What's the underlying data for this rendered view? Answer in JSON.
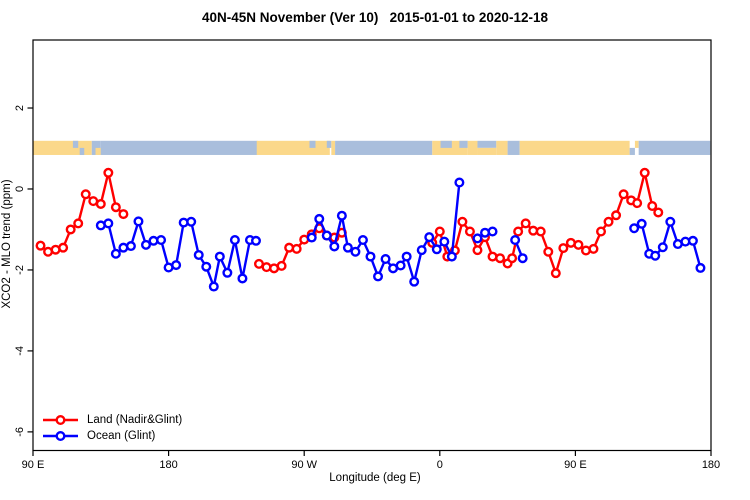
{
  "chart_data": {
    "type": "line",
    "title": "40N-45N November (Ver 10)   2015-01-01 to 2020-12-18",
    "xlabel": "Longitude (deg E)",
    "ylabel": "XCO2 - MLO trend (ppm)",
    "xlim": [
      90,
      540
    ],
    "ylim": [
      -6.46,
      3.68
    ],
    "grid": false,
    "legend_position": "bottom-left",
    "x_ticks": [
      {
        "label": "90 E",
        "lon": 90
      },
      {
        "label": "180",
        "lon": 180
      },
      {
        "label": "90 W",
        "lon": 270
      },
      {
        "label": "0",
        "lon": 360
      },
      {
        "label": "90 E",
        "lon": 450
      },
      {
        "label": "180",
        "lon": 540
      }
    ],
    "y_ticks": [
      {
        "label": "2",
        "value": 2
      },
      {
        "label": "0",
        "value": 0
      },
      {
        "label": "-2",
        "value": -2
      },
      {
        "label": "-4",
        "value": -4
      },
      {
        "label": "-6",
        "value": -6
      }
    ],
    "series": [
      {
        "name": "Land (Nadir&Glint)",
        "color": "#ff0000",
        "marker": "open-circle",
        "segments": [
          [
            [
              95,
              -1.4
            ],
            [
              100,
              -1.55
            ],
            [
              105,
              -1.5
            ],
            [
              110,
              -1.45
            ],
            [
              115,
              -1.0
            ],
            [
              120,
              -0.85
            ],
            [
              125,
              -0.13
            ],
            [
              130,
              -0.3
            ],
            [
              135,
              -0.37
            ],
            [
              140,
              0.4
            ],
            [
              145,
              -0.45
            ],
            [
              150,
              -0.62
            ]
          ],
          [
            [
              240,
              -1.85
            ],
            [
              245,
              -1.93
            ],
            [
              250,
              -1.96
            ],
            [
              255,
              -1.9
            ],
            [
              260,
              -1.45
            ],
            [
              265,
              -1.48
            ],
            [
              270,
              -1.25
            ],
            [
              275,
              -1.12
            ],
            [
              280,
              -0.97
            ],
            [
              285,
              -1.15
            ],
            [
              290,
              -1.2
            ],
            [
              295,
              -1.08
            ]
          ],
          [
            [
              355,
              -1.33
            ],
            [
              360,
              -1.05
            ],
            [
              365,
              -1.67
            ],
            [
              370,
              -1.52
            ],
            [
              375,
              -0.81
            ],
            [
              380,
              -1.05
            ],
            [
              385,
              -1.51
            ],
            [
              390,
              -1.19
            ],
            [
              395,
              -1.67
            ],
            [
              400,
              -1.71
            ],
            [
              405,
              -1.84
            ],
            [
              408,
              -1.71
            ],
            [
              412,
              -1.05
            ],
            [
              417,
              -0.85
            ],
            [
              422,
              -1.03
            ],
            [
              427,
              -1.05
            ],
            [
              432,
              -1.55
            ],
            [
              437,
              -2.08
            ],
            [
              442,
              -1.46
            ],
            [
              447,
              -1.33
            ],
            [
              452,
              -1.38
            ],
            [
              457,
              -1.52
            ],
            [
              462,
              -1.48
            ],
            [
              467,
              -1.05
            ],
            [
              472,
              -0.81
            ],
            [
              477,
              -0.65
            ],
            [
              482,
              -0.13
            ],
            [
              487,
              -0.28
            ],
            [
              491,
              -0.35
            ],
            [
              496,
              0.4
            ],
            [
              501,
              -0.42
            ],
            [
              505,
              -0.58
            ]
          ]
        ]
      },
      {
        "name": "Ocean (Glint)",
        "color": "#0000ff",
        "marker": "open-circle",
        "segments": [
          [
            [
              135,
              -0.9
            ],
            [
              140,
              -0.85
            ],
            [
              145,
              -1.6
            ],
            [
              150,
              -1.45
            ],
            [
              155,
              -1.41
            ],
            [
              160,
              -0.8
            ],
            [
              165,
              -1.38
            ],
            [
              170,
              -1.28
            ],
            [
              175,
              -1.26
            ],
            [
              180,
              -1.94
            ],
            [
              185,
              -1.88
            ],
            [
              190,
              -0.83
            ],
            [
              195,
              -0.81
            ],
            [
              200,
              -1.63
            ],
            [
              205,
              -1.92
            ],
            [
              210,
              -2.41
            ],
            [
              214,
              -1.67
            ],
            [
              219,
              -2.07
            ],
            [
              224,
              -1.26
            ],
            [
              229,
              -2.21
            ],
            [
              234,
              -1.26
            ],
            [
              238,
              -1.28
            ]
          ],
          [
            [
              275,
              -1.2
            ],
            [
              280,
              -0.74
            ],
            [
              285,
              -1.15
            ],
            [
              290,
              -1.42
            ],
            [
              295,
              -0.66
            ],
            [
              299,
              -1.45
            ],
            [
              304,
              -1.55
            ],
            [
              309,
              -1.26
            ],
            [
              314,
              -1.67
            ],
            [
              319,
              -2.16
            ],
            [
              324,
              -1.73
            ],
            [
              329,
              -1.96
            ],
            [
              334,
              -1.89
            ],
            [
              338,
              -1.67
            ],
            [
              343,
              -2.29
            ],
            [
              348,
              -1.51
            ],
            [
              353,
              -1.19
            ],
            [
              358,
              -1.49
            ],
            [
              363,
              -1.3
            ],
            [
              368,
              -1.67
            ],
            [
              373,
              0.16
            ]
          ],
          [
            [
              385,
              -1.22
            ],
            [
              390,
              -1.08
            ],
            [
              395,
              -1.05
            ]
          ],
          [
            [
              410,
              -1.26
            ],
            [
              415,
              -1.71
            ]
          ],
          [
            [
              489,
              -0.97
            ],
            [
              494,
              -0.86
            ],
            [
              499,
              -1.6
            ],
            [
              503,
              -1.65
            ],
            [
              508,
              -1.44
            ],
            [
              513,
              -0.81
            ],
            [
              518,
              -1.36
            ],
            [
              523,
              -1.3
            ],
            [
              528,
              -1.28
            ],
            [
              533,
              -1.95
            ]
          ]
        ]
      }
    ],
    "map_band": {
      "description": "land/ocean strip along 40N-45N",
      "value_range": [
        0.84,
        1.19
      ],
      "land_color": "#fbd88a",
      "ocean_color": "#a9bedc",
      "patches": [
        {
          "type": "land",
          "from": 90,
          "to": 129,
          "part": "full"
        },
        {
          "type": "ocean",
          "from": 116.5,
          "to": 120,
          "part": "upper"
        },
        {
          "type": "ocean",
          "from": 121,
          "to": 124,
          "part": "lower"
        },
        {
          "type": "ocean",
          "from": 129,
          "to": 135,
          "part": "full"
        },
        {
          "type": "land",
          "from": 131.5,
          "to": 135,
          "part": "lower"
        },
        {
          "type": "ocean",
          "from": 135,
          "to": 239,
          "part": "full"
        },
        {
          "type": "land",
          "from": 238.5,
          "to": 287,
          "part": "full"
        },
        {
          "type": "ocean",
          "from": 273.5,
          "to": 277.5,
          "part": "upper"
        },
        {
          "type": "ocean",
          "from": 285,
          "to": 288,
          "part": "upper"
        },
        {
          "type": "land",
          "from": 288,
          "to": 290.5,
          "part": "full"
        },
        {
          "type": "ocean",
          "from": 290.5,
          "to": 355,
          "part": "full"
        },
        {
          "type": "land",
          "from": 355,
          "to": 378.5,
          "part": "full"
        },
        {
          "type": "ocean",
          "from": 360.5,
          "to": 368,
          "part": "upper"
        },
        {
          "type": "ocean",
          "from": 373,
          "to": 378.5,
          "part": "upper"
        },
        {
          "type": "land",
          "from": 378.5,
          "to": 385,
          "part": "full"
        },
        {
          "type": "ocean",
          "from": 385,
          "to": 397.5,
          "part": "upper"
        },
        {
          "type": "land",
          "from": 385,
          "to": 397.5,
          "part": "lower"
        },
        {
          "type": "land",
          "from": 397.5,
          "to": 405,
          "part": "full"
        },
        {
          "type": "ocean",
          "from": 405,
          "to": 413,
          "part": "full"
        },
        {
          "type": "land",
          "from": 413,
          "to": 486,
          "part": "full"
        },
        {
          "type": "ocean",
          "from": 486,
          "to": 489.5,
          "part": "lower"
        },
        {
          "type": "land",
          "from": 489.5,
          "to": 492,
          "part": "upper"
        },
        {
          "type": "ocean",
          "from": 492,
          "to": 539.5,
          "part": "full"
        }
      ]
    }
  }
}
